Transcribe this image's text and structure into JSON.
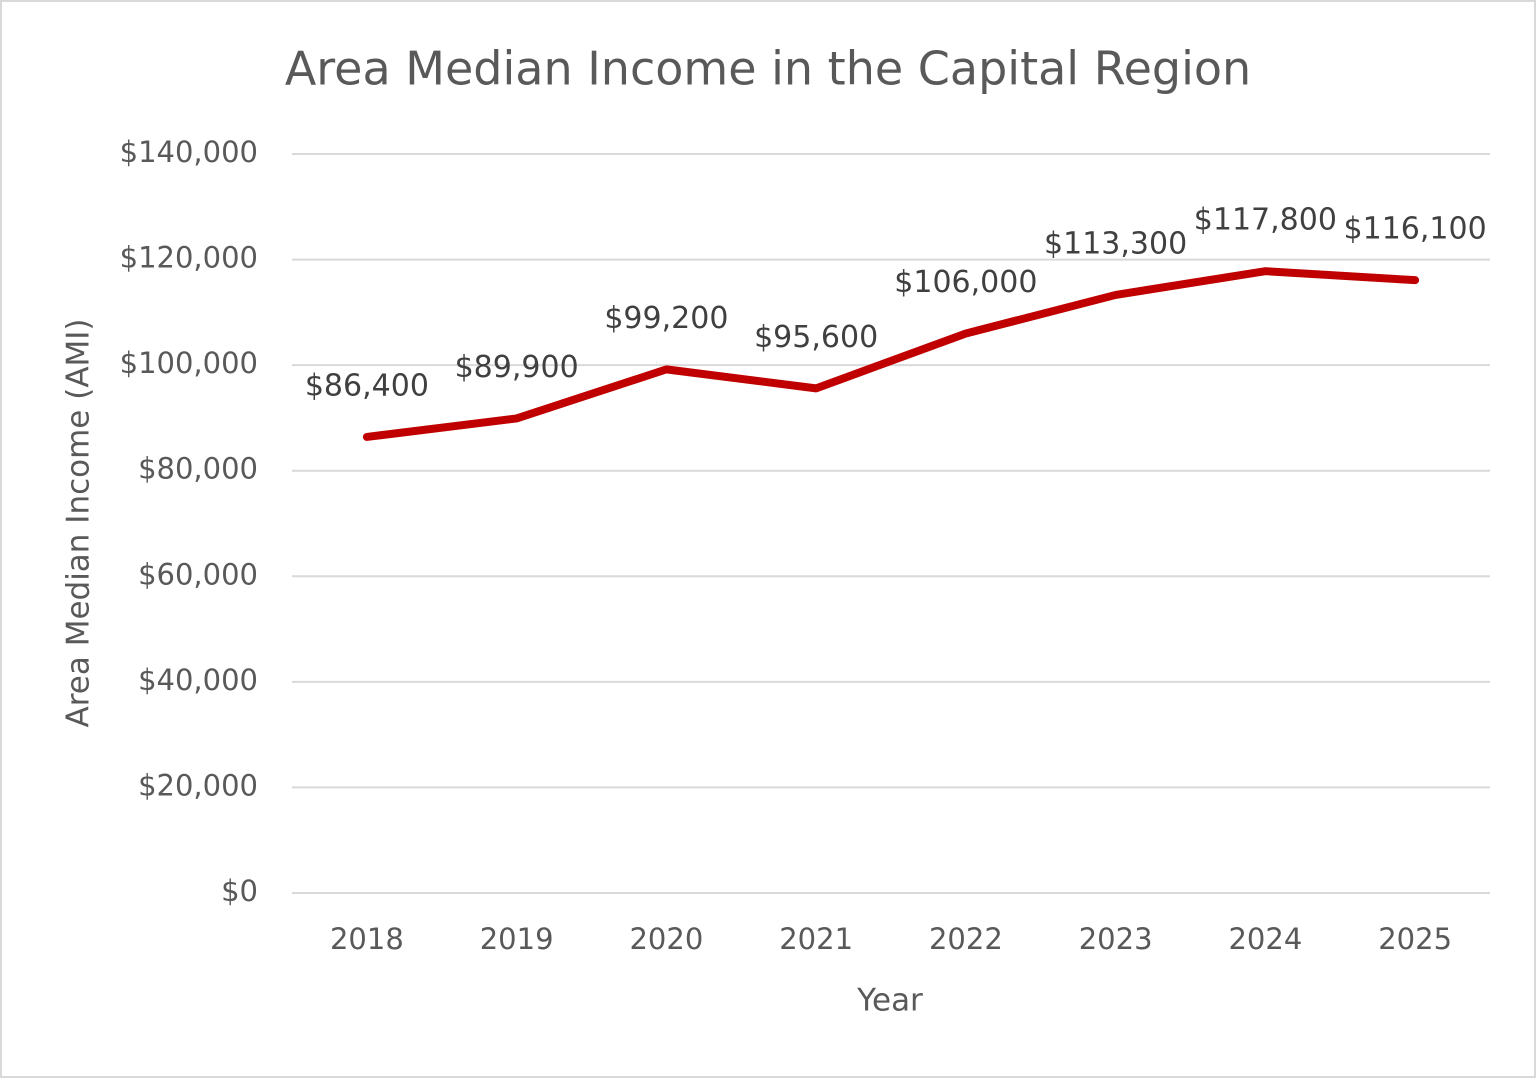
{
  "chart_data": {
    "type": "line",
    "title": "Area Median Income in the Capital Region",
    "x_label": "Year",
    "y_label": "Area Median Income (AMI)",
    "categories": [
      "2018",
      "2019",
      "2020",
      "2021",
      "2022",
      "2023",
      "2024",
      "2025"
    ],
    "values": [
      86400,
      89900,
      99200,
      95600,
      106000,
      113300,
      117800,
      116100
    ],
    "value_labels": [
      "$86,400",
      "$89,900",
      "$99,200",
      "$95,600",
      "$106,000",
      "$113,300",
      "$117,800",
      "$116,100"
    ],
    "color": "#c00000",
    "ylim": [
      0,
      140000
    ],
    "yticks": [
      {
        "value": 0,
        "label": "$0"
      },
      {
        "value": 20000,
        "label": "$20,000"
      },
      {
        "value": 40000,
        "label": "$40,000"
      },
      {
        "value": 60000,
        "label": "$60,000"
      },
      {
        "value": 80000,
        "label": "$80,000"
      },
      {
        "value": 100000,
        "label": "$100,000"
      },
      {
        "value": 120000,
        "label": "$120,000"
      },
      {
        "value": 140000,
        "label": "$140,000"
      }
    ],
    "grid": true
  }
}
